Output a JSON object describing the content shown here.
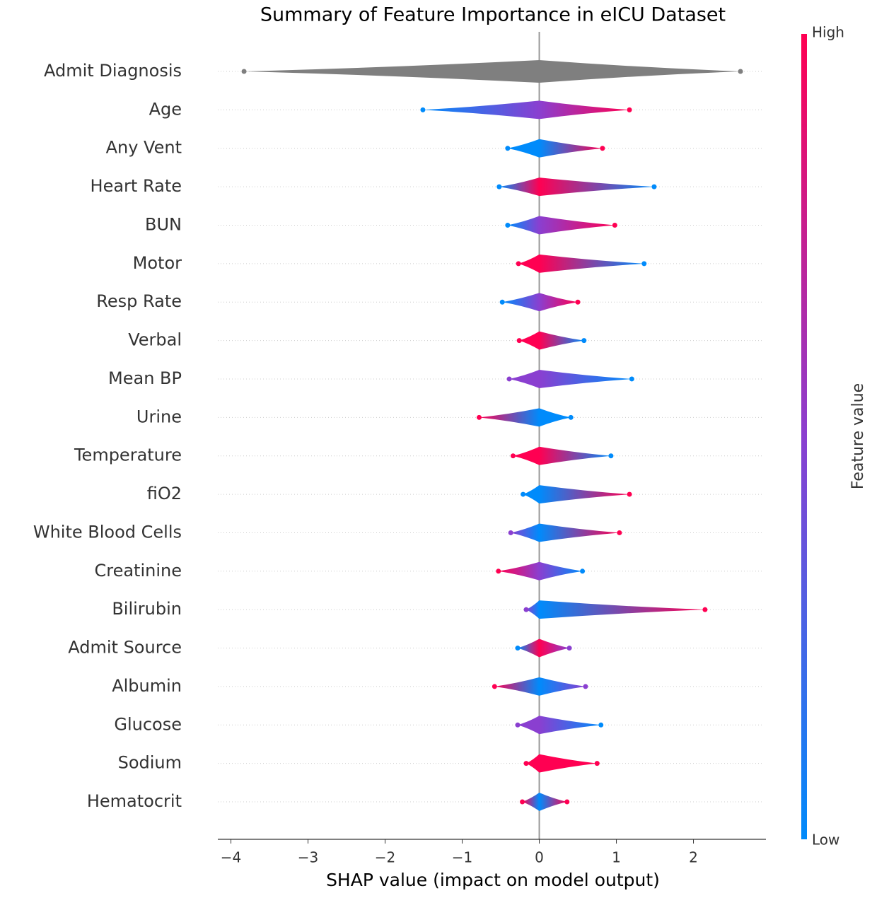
{
  "chart_data": {
    "type": "beeswarm",
    "title": "Summary of Feature Importance in eICU Dataset",
    "x_label": "SHAP value (impact on model output)",
    "colorbar_label": "Feature value",
    "colorbar_high": "High",
    "colorbar_low": "Low",
    "colorbar_colors": [
      "#008bfb",
      "#8a3fd0",
      "#ff0052"
    ],
    "categories": [
      "Admit Diagnosis",
      "Age",
      "Any Vent",
      "Heart Rate",
      "BUN",
      "Motor",
      "Resp Rate",
      "Verbal",
      "Mean BP",
      "Urine",
      "Temperature",
      "fiO2",
      "White Blood Cells",
      "Creatinine",
      "Bilirubin",
      "Admit Source",
      "Albumin",
      "Glucose",
      "Sodium",
      "Hematocrit"
    ],
    "min": [
      -3.83,
      -1.51,
      -0.41,
      -0.52,
      -0.41,
      -0.27,
      -0.48,
      -0.26,
      -0.39,
      -0.78,
      -0.34,
      -0.21,
      -0.37,
      -0.53,
      -0.17,
      -0.28,
      -0.58,
      -0.28,
      -0.17,
      -0.22
    ],
    "max": [
      2.61,
      1.17,
      0.82,
      1.49,
      0.98,
      1.36,
      0.5,
      0.58,
      1.2,
      0.41,
      0.93,
      1.17,
      1.04,
      0.56,
      2.15,
      0.39,
      0.6,
      0.8,
      0.75,
      0.36
    ],
    "colors": [
      [
        "#7f7f7f",
        "#7f7f7f",
        "#7f7f7f"
      ],
      [
        "#008bfb",
        "#8a3fd0",
        "#ff0052"
      ],
      [
        "#008bfb",
        "#008bfb",
        "#ff0052"
      ],
      [
        "#008bfb",
        "#ff0052",
        "#008bfb"
      ],
      [
        "#008bfb",
        "#8a3fd0",
        "#ff0052"
      ],
      [
        "#ff0052",
        "#ff0052",
        "#008bfb"
      ],
      [
        "#008bfb",
        "#8a3fd0",
        "#ff0052"
      ],
      [
        "#ff0052",
        "#ff0052",
        "#008bfb"
      ],
      [
        "#8a3fd0",
        "#8a3fd0",
        "#008bfb"
      ],
      [
        "#ff0052",
        "#008bfb",
        "#008bfb"
      ],
      [
        "#ff0052",
        "#ff0052",
        "#008bfb"
      ],
      [
        "#008bfb",
        "#008bfb",
        "#ff0052"
      ],
      [
        "#8a3fd0",
        "#008bfb",
        "#ff0052"
      ],
      [
        "#ff0052",
        "#8a3fd0",
        "#008bfb"
      ],
      [
        "#8a3fd0",
        "#008bfb",
        "#ff0052"
      ],
      [
        "#008bfb",
        "#ff0052",
        "#8a3fd0"
      ],
      [
        "#ff0052",
        "#008bfb",
        "#8a3fd0"
      ],
      [
        "#8a3fd0",
        "#8a3fd0",
        "#008bfb"
      ],
      [
        "#ff0052",
        "#ff0052",
        "#ff0052"
      ],
      [
        "#ff0052",
        "#008bfb",
        "#ff0052"
      ]
    ],
    "xlim": [
      -4.17,
      2.94
    ],
    "xticks": [
      {
        "value": -4,
        "label": "−4"
      },
      {
        "value": -3,
        "label": "−3"
      },
      {
        "value": -2,
        "label": "−2"
      },
      {
        "value": -1,
        "label": "−1"
      },
      0,
      1,
      2
    ],
    "grid": true
  }
}
